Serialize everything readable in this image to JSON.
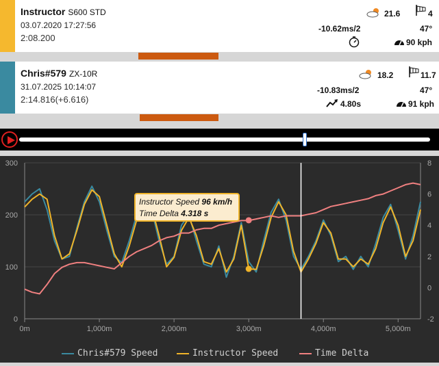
{
  "session1": {
    "rider": "Instructor",
    "bike": "S600 STD",
    "datetime": "03.07.2020 17:27:56",
    "lap_time": "2:08.200",
    "temperature": "21.6",
    "wind": "4",
    "decel": "-10.62ms/2",
    "lean": "47°",
    "speed": "90 kph",
    "stripe_color": "#f5b82e"
  },
  "session2": {
    "rider": "Chris#579",
    "bike": "ZX-10R",
    "datetime": "31.07.2025 10:14:07",
    "lap_time": "2:14.816(+6.616)",
    "temperature": "18.2",
    "wind": "11.7",
    "decel": "-10.83ms/2",
    "lean": "47°",
    "time_stat": "4.80s",
    "speed": "91 kph",
    "stripe_color": "#3a8aa0"
  },
  "icons": [
    "sun-cloud-icon",
    "windsock-icon",
    "stopwatch-icon",
    "speedometer-icon",
    "trend-icon",
    "play-icon"
  ],
  "player": {
    "progress": 0.695
  },
  "tooltip": {
    "line1_label": "Instructor Speed",
    "line1_value": "96 km/h",
    "line2_label": "Time Delta",
    "line2_value": "4.318 s"
  },
  "chart_data": {
    "type": "line",
    "x_axis": {
      "ticks": [
        "0m",
        "1,000m",
        "2,000m",
        "3,000m",
        "4,000m",
        "5,000m"
      ],
      "range": [
        0,
        5300
      ]
    },
    "y_axis_left": {
      "ticks": [
        "0",
        "100",
        "200",
        "300"
      ],
      "range": [
        0,
        300
      ]
    },
    "y_axis_right": {
      "ticks": [
        "-2",
        "0",
        "2",
        "4",
        "6",
        "8"
      ],
      "range": [
        -2,
        8
      ]
    },
    "cursor_x": 3700,
    "series": [
      {
        "name": "Chris#579 Speed",
        "color": "#3a8aa0",
        "axis": "left",
        "x": [
          0,
          100,
          200,
          300,
          400,
          500,
          600,
          700,
          800,
          900,
          1000,
          1100,
          1200,
          1300,
          1400,
          1500,
          1600,
          1700,
          1800,
          1900,
          2000,
          2100,
          2200,
          2300,
          2400,
          2500,
          2600,
          2700,
          2800,
          2900,
          3000,
          3100,
          3200,
          3300,
          3400,
          3500,
          3600,
          3700,
          3800,
          3900,
          4000,
          4100,
          4200,
          4300,
          4400,
          4500,
          4600,
          4700,
          4800,
          4900,
          5000,
          5100,
          5200,
          5300
        ],
        "values": [
          225,
          240,
          250,
          210,
          150,
          115,
          120,
          175,
          225,
          255,
          225,
          170,
          120,
          108,
          150,
          200,
          230,
          210,
          150,
          105,
          120,
          180,
          200,
          150,
          105,
          100,
          140,
          80,
          120,
          185,
          110,
          90,
          150,
          205,
          230,
          190,
          120,
          95,
          120,
          150,
          190,
          160,
          110,
          120,
          95,
          120,
          100,
          145,
          195,
          220,
          170,
          115,
          160,
          225
        ]
      },
      {
        "name": "Instructor Speed",
        "color": "#f0b429",
        "axis": "left",
        "x": [
          0,
          100,
          200,
          300,
          400,
          500,
          600,
          700,
          800,
          900,
          1000,
          1100,
          1200,
          1300,
          1400,
          1500,
          1600,
          1700,
          1800,
          1900,
          2000,
          2100,
          2200,
          2300,
          2400,
          2500,
          2600,
          2700,
          2800,
          2900,
          3000,
          3100,
          3200,
          3300,
          3400,
          3500,
          3600,
          3700,
          3800,
          3900,
          4000,
          4100,
          4200,
          4300,
          4400,
          4500,
          4600,
          4700,
          4800,
          4900,
          5000,
          5100,
          5200,
          5300
        ],
        "values": [
          215,
          230,
          240,
          230,
          160,
          115,
          125,
          170,
          220,
          248,
          235,
          180,
          125,
          100,
          140,
          190,
          222,
          215,
          160,
          100,
          118,
          170,
          195,
          160,
          110,
          105,
          135,
          90,
          115,
          180,
          96,
          95,
          140,
          195,
          225,
          200,
          130,
          90,
          115,
          145,
          185,
          165,
          115,
          115,
          100,
          115,
          105,
          135,
          185,
          215,
          180,
          120,
          150,
          210
        ]
      },
      {
        "name": "Time Delta",
        "color": "#f08080",
        "axis": "right",
        "x": [
          0,
          100,
          200,
          300,
          400,
          500,
          600,
          700,
          800,
          900,
          1000,
          1100,
          1200,
          1300,
          1400,
          1500,
          1600,
          1700,
          1800,
          1900,
          2000,
          2100,
          2200,
          2300,
          2400,
          2500,
          2600,
          2700,
          2800,
          2900,
          3000,
          3100,
          3200,
          3300,
          3400,
          3500,
          3600,
          3700,
          3800,
          3900,
          4000,
          4100,
          4200,
          4300,
          4400,
          4500,
          4600,
          4700,
          4800,
          4900,
          5000,
          5100,
          5200,
          5300
        ],
        "values": [
          -0.1,
          -0.3,
          -0.4,
          0.2,
          0.9,
          1.3,
          1.5,
          1.6,
          1.6,
          1.5,
          1.4,
          1.3,
          1.2,
          1.6,
          2.0,
          2.3,
          2.5,
          2.7,
          3.0,
          3.2,
          3.3,
          3.5,
          3.5,
          3.7,
          3.8,
          3.8,
          4.0,
          4.1,
          4.2,
          4.3,
          4.3,
          4.4,
          4.5,
          4.6,
          4.5,
          4.6,
          4.6,
          4.6,
          4.7,
          4.8,
          5.0,
          5.2,
          5.3,
          5.4,
          5.5,
          5.6,
          5.7,
          5.9,
          6.0,
          6.2,
          6.4,
          6.6,
          6.7,
          6.6
        ]
      }
    ],
    "highlight_points": [
      {
        "series": "Time Delta",
        "x": 3000,
        "y": 4.318
      },
      {
        "series": "Instructor Speed",
        "x": 3000,
        "y": 96
      }
    ]
  }
}
